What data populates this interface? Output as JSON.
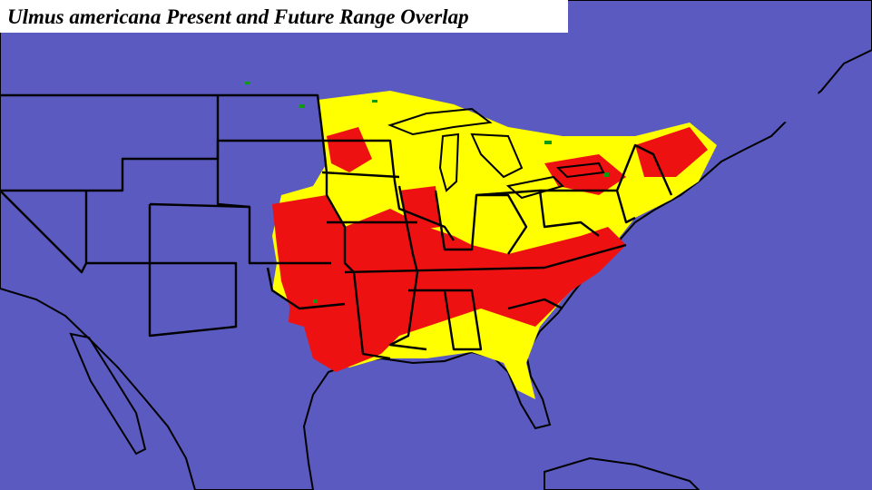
{
  "title": "Ulmus americana Present and Future Range Overlap"
}
